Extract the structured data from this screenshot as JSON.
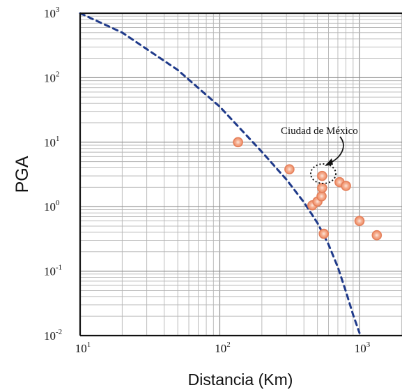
{
  "chart_data": {
    "type": "scatter",
    "title": "",
    "xlabel": "Distancia (Km)",
    "ylabel": "PGA",
    "xscale": "log",
    "yscale": "log",
    "xlim": [
      10,
      2000
    ],
    "ylim": [
      0.01,
      1000
    ],
    "grid": true,
    "x_ticks": [
      {
        "base": "10",
        "exp": "1"
      },
      {
        "base": "10",
        "exp": "2"
      },
      {
        "base": "10",
        "exp": "3"
      }
    ],
    "y_ticks": [
      {
        "base": "10",
        "exp": "-2"
      },
      {
        "base": "10",
        "exp": "-1"
      },
      {
        "base": "10",
        "exp": "0"
      },
      {
        "base": "10",
        "exp": "1"
      },
      {
        "base": "10",
        "exp": "2"
      },
      {
        "base": "10",
        "exp": "3"
      }
    ],
    "series": [
      {
        "type": "line",
        "style": "dashed",
        "color": "#1f3a8a",
        "x": [
          10,
          20,
          50,
          100,
          200,
          300,
          400,
          500,
          600,
          700,
          800,
          900,
          1000
        ],
        "y": [
          1000,
          501,
          132,
          35.5,
          7.08,
          2.63,
          1.17,
          0.56,
          0.26,
          0.115,
          0.048,
          0.021,
          0.011
        ]
      },
      {
        "type": "scatter",
        "color": "#f0916a",
        "points": [
          {
            "x": 135,
            "y": 10
          },
          {
            "x": 315,
            "y": 3.8
          },
          {
            "x": 460,
            "y": 1.05
          },
          {
            "x": 500,
            "y": 1.2
          },
          {
            "x": 535,
            "y": 1.45
          },
          {
            "x": 540,
            "y": 1.95
          },
          {
            "x": 540,
            "y": 3.0
          },
          {
            "x": 555,
            "y": 0.38
          },
          {
            "x": 720,
            "y": 2.4
          },
          {
            "x": 800,
            "y": 2.1
          },
          {
            "x": 1000,
            "y": 0.6
          },
          {
            "x": 1330,
            "y": 0.36
          }
        ]
      }
    ],
    "annotations": [
      {
        "text": "Ciudad de México",
        "x": 540,
        "y": 3.1
      }
    ]
  }
}
